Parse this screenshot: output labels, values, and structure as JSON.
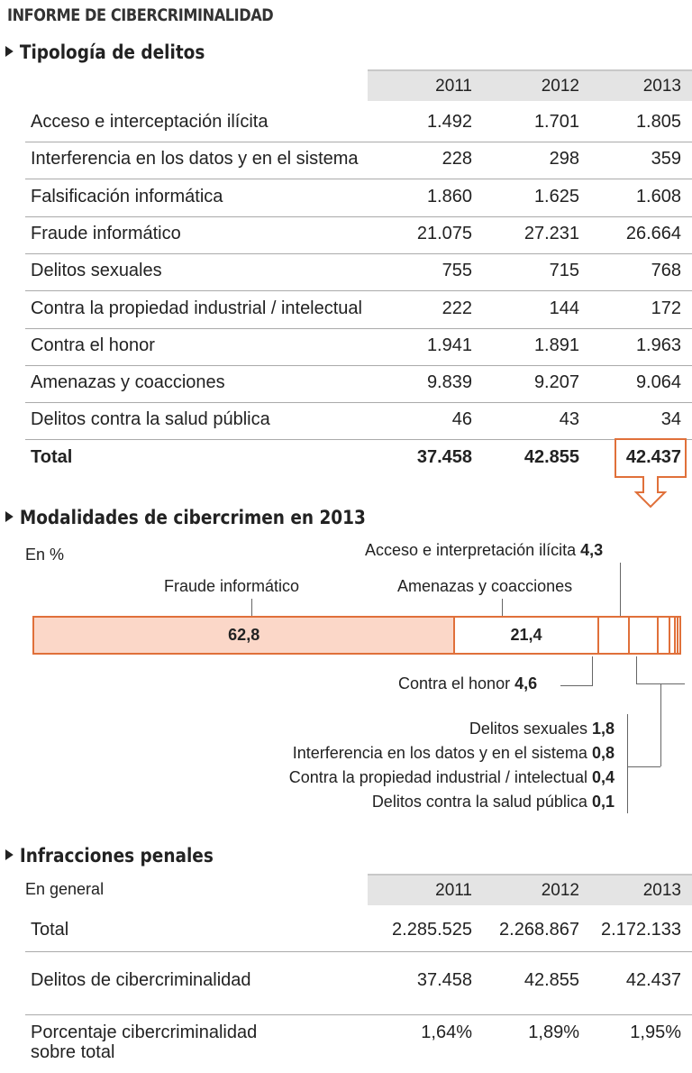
{
  "title": "INFORME DE CIBERCRIMINALIDAD",
  "section1": {
    "title": "Tipología de delitos",
    "years": [
      "2011",
      "2012",
      "2013"
    ],
    "rows": [
      {
        "label": "Acceso e interceptación ilícita",
        "values": [
          "1.492",
          "1.701",
          "1.805"
        ]
      },
      {
        "label": "Interferencia en los datos y en el sistema",
        "values": [
          "228",
          "298",
          "359"
        ]
      },
      {
        "label": "Falsificación informática",
        "values": [
          "1.860",
          "1.625",
          "1.608"
        ]
      },
      {
        "label": "Fraude informático",
        "values": [
          "21.075",
          "27.231",
          "26.664"
        ]
      },
      {
        "label": "Delitos sexuales",
        "values": [
          "755",
          "715",
          "768"
        ]
      },
      {
        "label": "Contra la propiedad industrial / intelectual",
        "values": [
          "222",
          "144",
          "172"
        ]
      },
      {
        "label": "Contra el honor",
        "values": [
          "1.941",
          "1.891",
          "1.963"
        ]
      },
      {
        "label": "Amenazas y coacciones",
        "values": [
          "9.839",
          "9.207",
          "9.064"
        ]
      },
      {
        "label": "Delitos contra la salud pública",
        "values": [
          "46",
          "43",
          "34"
        ]
      }
    ],
    "total": {
      "label": "Total",
      "values": [
        "37.458",
        "42.855",
        "42.437"
      ]
    }
  },
  "section2": {
    "title": "Modalidades de cibercrimen en 2013",
    "unit": "En %"
  },
  "chart_data": {
    "type": "bar",
    "stacked": true,
    "title": "Modalidades de cibercrimen en 2013",
    "unit": "En %",
    "categories": [
      "Fraude informático",
      "Amenazas y coacciones",
      "Contra el honor",
      "Acceso e interpretación ilícita",
      "Delitos sexuales",
      "Interferencia en los datos y en el sistema",
      "Contra la propiedad industrial / intelectual",
      "Delitos contra la salud pública"
    ],
    "values": [
      62.8,
      21.4,
      4.6,
      4.3,
      1.8,
      0.8,
      0.4,
      0.1
    ],
    "labels": [
      "62,8",
      "21,4",
      "4,6",
      "4,3",
      "1,8",
      "0,8",
      "0,4",
      "0,1"
    ],
    "colors": {
      "highlight": "#fbd7c8",
      "border": "#e0703a"
    }
  },
  "section3": {
    "title": "Infracciones penales",
    "subtitle": "En general",
    "years": [
      "2011",
      "2012",
      "2013"
    ],
    "rows": [
      {
        "label": "Total",
        "values": [
          "2.285.525",
          "2.268.867",
          "2.172.133"
        ]
      },
      {
        "label": "Delitos de cibercriminalidad",
        "values": [
          "37.458",
          "42.855",
          "42.437"
        ]
      },
      {
        "label": "Porcentaje cibercriminalidad sobre total",
        "values": [
          "1,64%",
          "1,89%",
          "1,95%"
        ]
      }
    ]
  }
}
